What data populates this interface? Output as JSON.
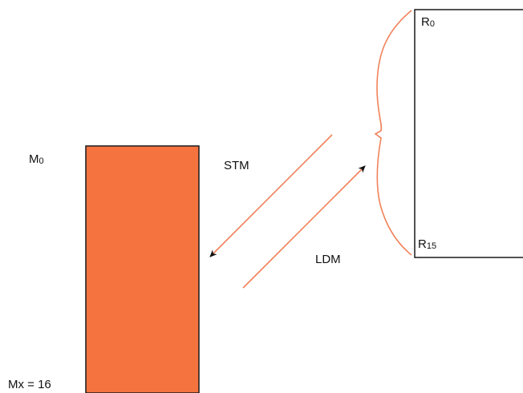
{
  "colors": {
    "memory_fill": "#f4733f",
    "arrow": "#f0825a",
    "stroke": "#1a1a1a",
    "text": "#111111"
  },
  "memory": {
    "label_main": "M",
    "label_sub": "0",
    "bottom_label": "Mx = 16"
  },
  "registers": {
    "top_main": "R",
    "top_sub": "0",
    "bottom_main": "R",
    "bottom_sub": "15"
  },
  "arrows": {
    "store_label": "STM",
    "load_label": "LDM"
  }
}
